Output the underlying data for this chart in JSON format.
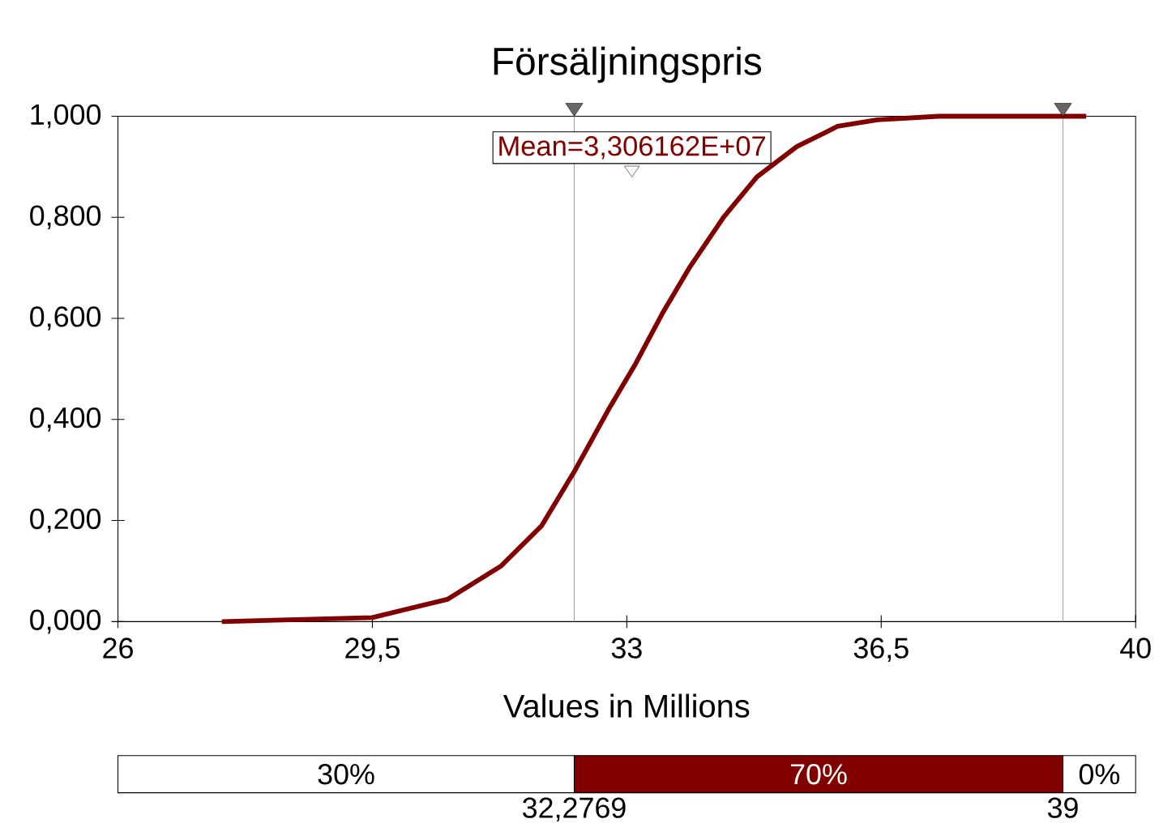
{
  "chart_data": [
    {
      "type": "line",
      "title": "Försäljningspris",
      "xlabel": "Values in Millions",
      "x": [
        27.43,
        29.5,
        30.53,
        31.27,
        31.83,
        32.29,
        32.75,
        33.12,
        33.49,
        33.86,
        34.33,
        34.79,
        35.34,
        35.9,
        36.45,
        37.29,
        39.32
      ],
      "series": [
        {
          "color": "#800000",
          "values": [
            0,
            0.008,
            0.044,
            0.11,
            0.19,
            0.3,
            0.42,
            0.51,
            0.61,
            0.7,
            0.8,
            0.88,
            0.94,
            0.98,
            0.993,
            1.0,
            1.0
          ]
        }
      ],
      "xlim": [
        26,
        40
      ],
      "ylim": [
        0,
        1
      ],
      "xticks": [
        26,
        {
          "value": 29.5,
          "label": "29,5"
        },
        33,
        {
          "value": 36.5,
          "label": "36,5"
        },
        40
      ],
      "yticks": [
        {
          "value": 0,
          "label": "0,000"
        },
        {
          "value": 0.2,
          "label": "0,200"
        },
        {
          "value": 0.4,
          "label": "0,400"
        },
        {
          "value": 0.6,
          "label": "0,600"
        },
        {
          "value": 0.8,
          "label": "0,800"
        },
        {
          "value": 1,
          "label": "1,000"
        }
      ],
      "ref_lines": [
        {
          "axis": "x",
          "value": 32.2769,
          "color": "#a0a0a0"
        },
        {
          "axis": "x",
          "value": 39,
          "color": "#a0a0a0"
        }
      ],
      "annotations": [
        "Mean=3,306162E+07"
      ],
      "grid": false,
      "marker": "none",
      "line_style": "solid"
    },
    {
      "type": "other",
      "annotations": [
        "30%",
        "70%",
        "0%",
        "32,2769",
        "39"
      ]
    }
  ]
}
